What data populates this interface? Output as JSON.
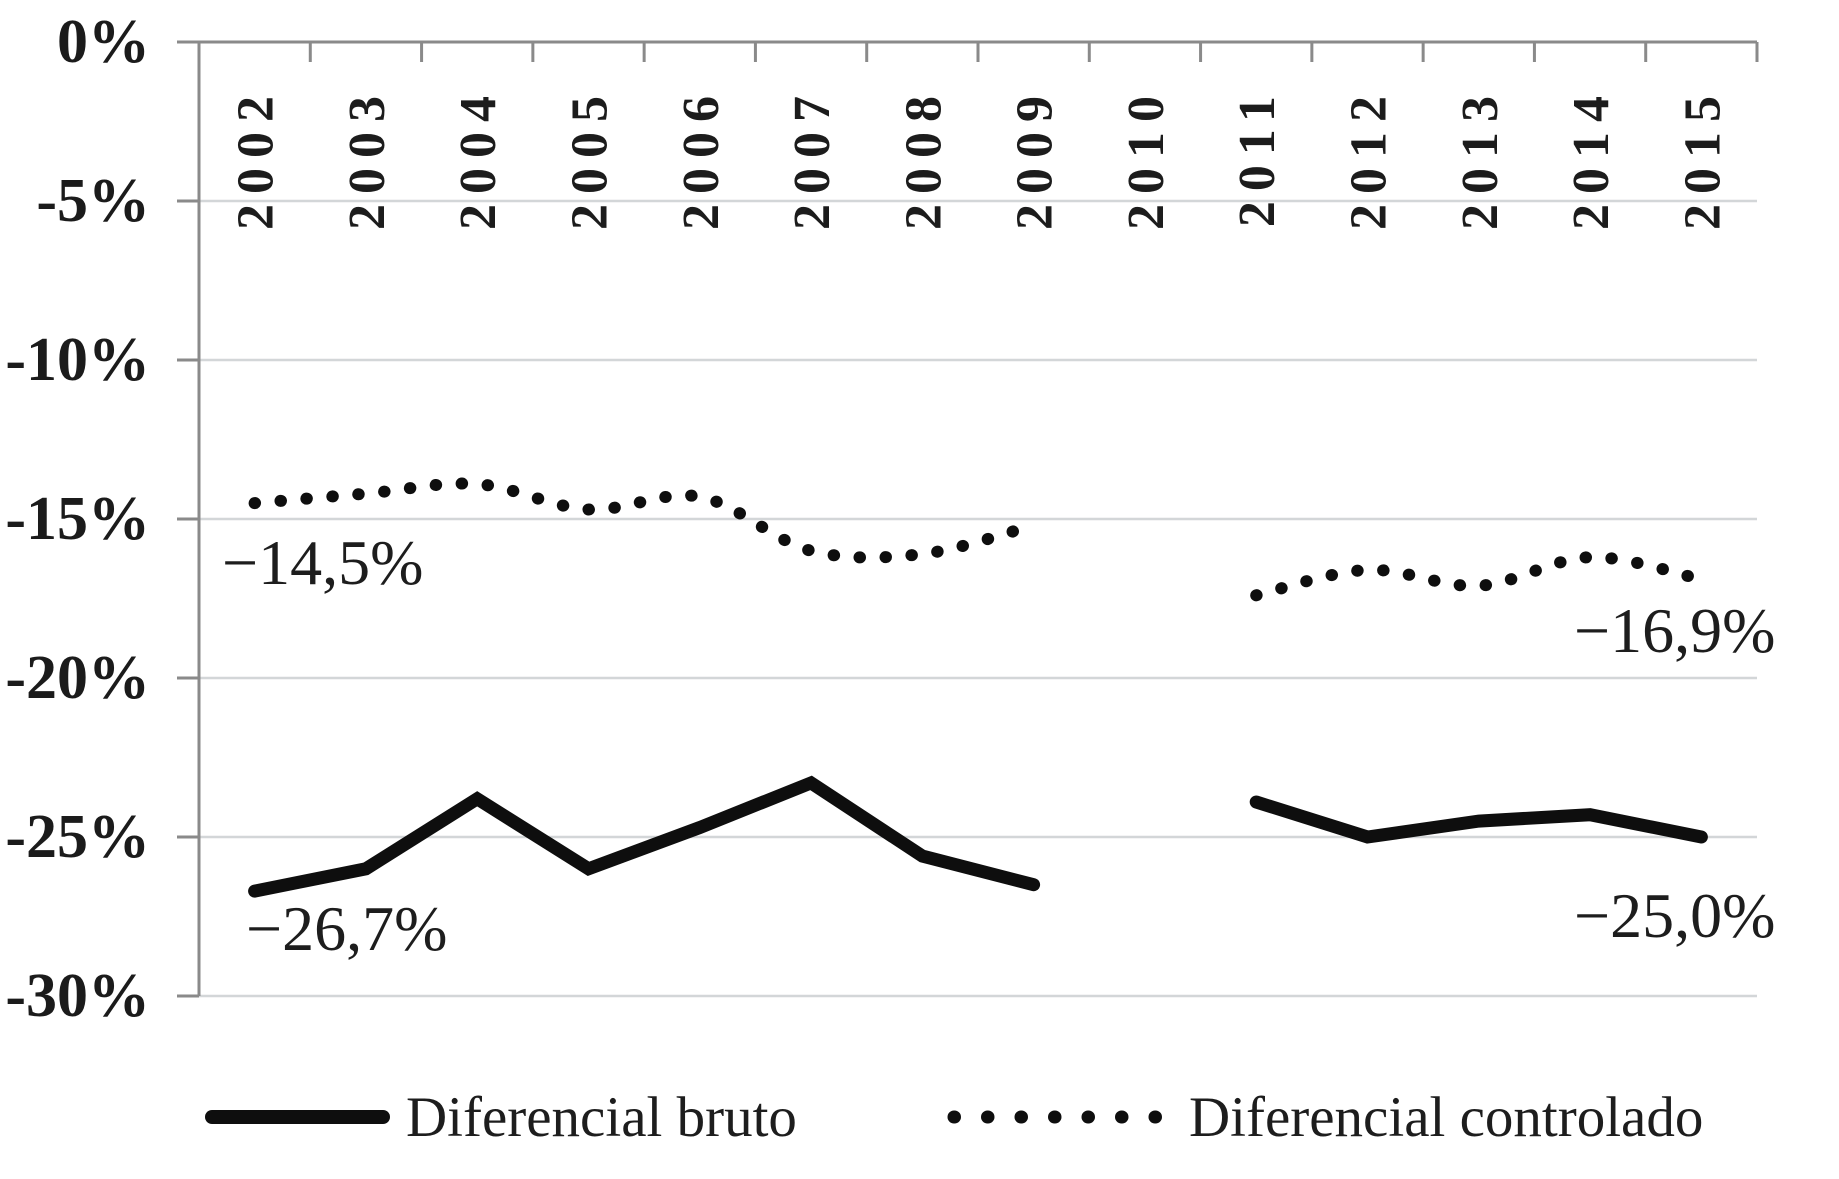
{
  "chart_data": {
    "type": "line",
    "title": "",
    "xlabel": "",
    "ylabel": "",
    "categories": [
      "2002",
      "2003",
      "2004",
      "2005",
      "2006",
      "2007",
      "2008",
      "2009",
      "2010",
      "2011",
      "2012",
      "2013",
      "2014",
      "2015"
    ],
    "series": [
      {
        "name": "Diferencial bruto",
        "line_style": "solid",
        "color": "#0e0e0e",
        "values": [
          -26.7,
          -26.0,
          -23.8,
          -26.0,
          -24.7,
          -23.3,
          -25.6,
          -26.5,
          null,
          -23.9,
          -25.0,
          -24.5,
          -24.3,
          -25.0
        ]
      },
      {
        "name": "Diferencial controlado",
        "line_style": "dotted",
        "color": "#0e0e0e",
        "values": [
          -14.5,
          -14.2,
          -13.9,
          -14.7,
          -14.3,
          -16.0,
          -16.1,
          -15.2,
          null,
          -17.4,
          -16.6,
          -17.1,
          -16.2,
          -16.9
        ]
      }
    ],
    "y_axis": {
      "min": -30,
      "max": 0,
      "labels": [
        "0%",
        "-5%",
        "-10%",
        "-15%",
        "-20%",
        "-25%",
        "-30%"
      ],
      "values": [
        0,
        -5,
        -10,
        -15,
        -20,
        -25,
        -30
      ]
    },
    "grid": "horizontal",
    "legend_position": "bottom",
    "gap_year": "2010",
    "annotations": [
      {
        "text": "−14,5%",
        "series": "Diferencial controlado",
        "year": "2002"
      },
      {
        "text": "−26,7%",
        "series": "Diferencial bruto",
        "year": "2002"
      },
      {
        "text": "−16,9%",
        "series": "Diferencial controlado",
        "year": "2015"
      },
      {
        "text": "−25,0%",
        "series": "Diferencial bruto",
        "year": "2015"
      }
    ],
    "colors": {
      "axis": "#8a8a8a",
      "gridline": "#d3d6d8",
      "series": "#0e0e0e",
      "text": "#1d1d1d"
    }
  }
}
